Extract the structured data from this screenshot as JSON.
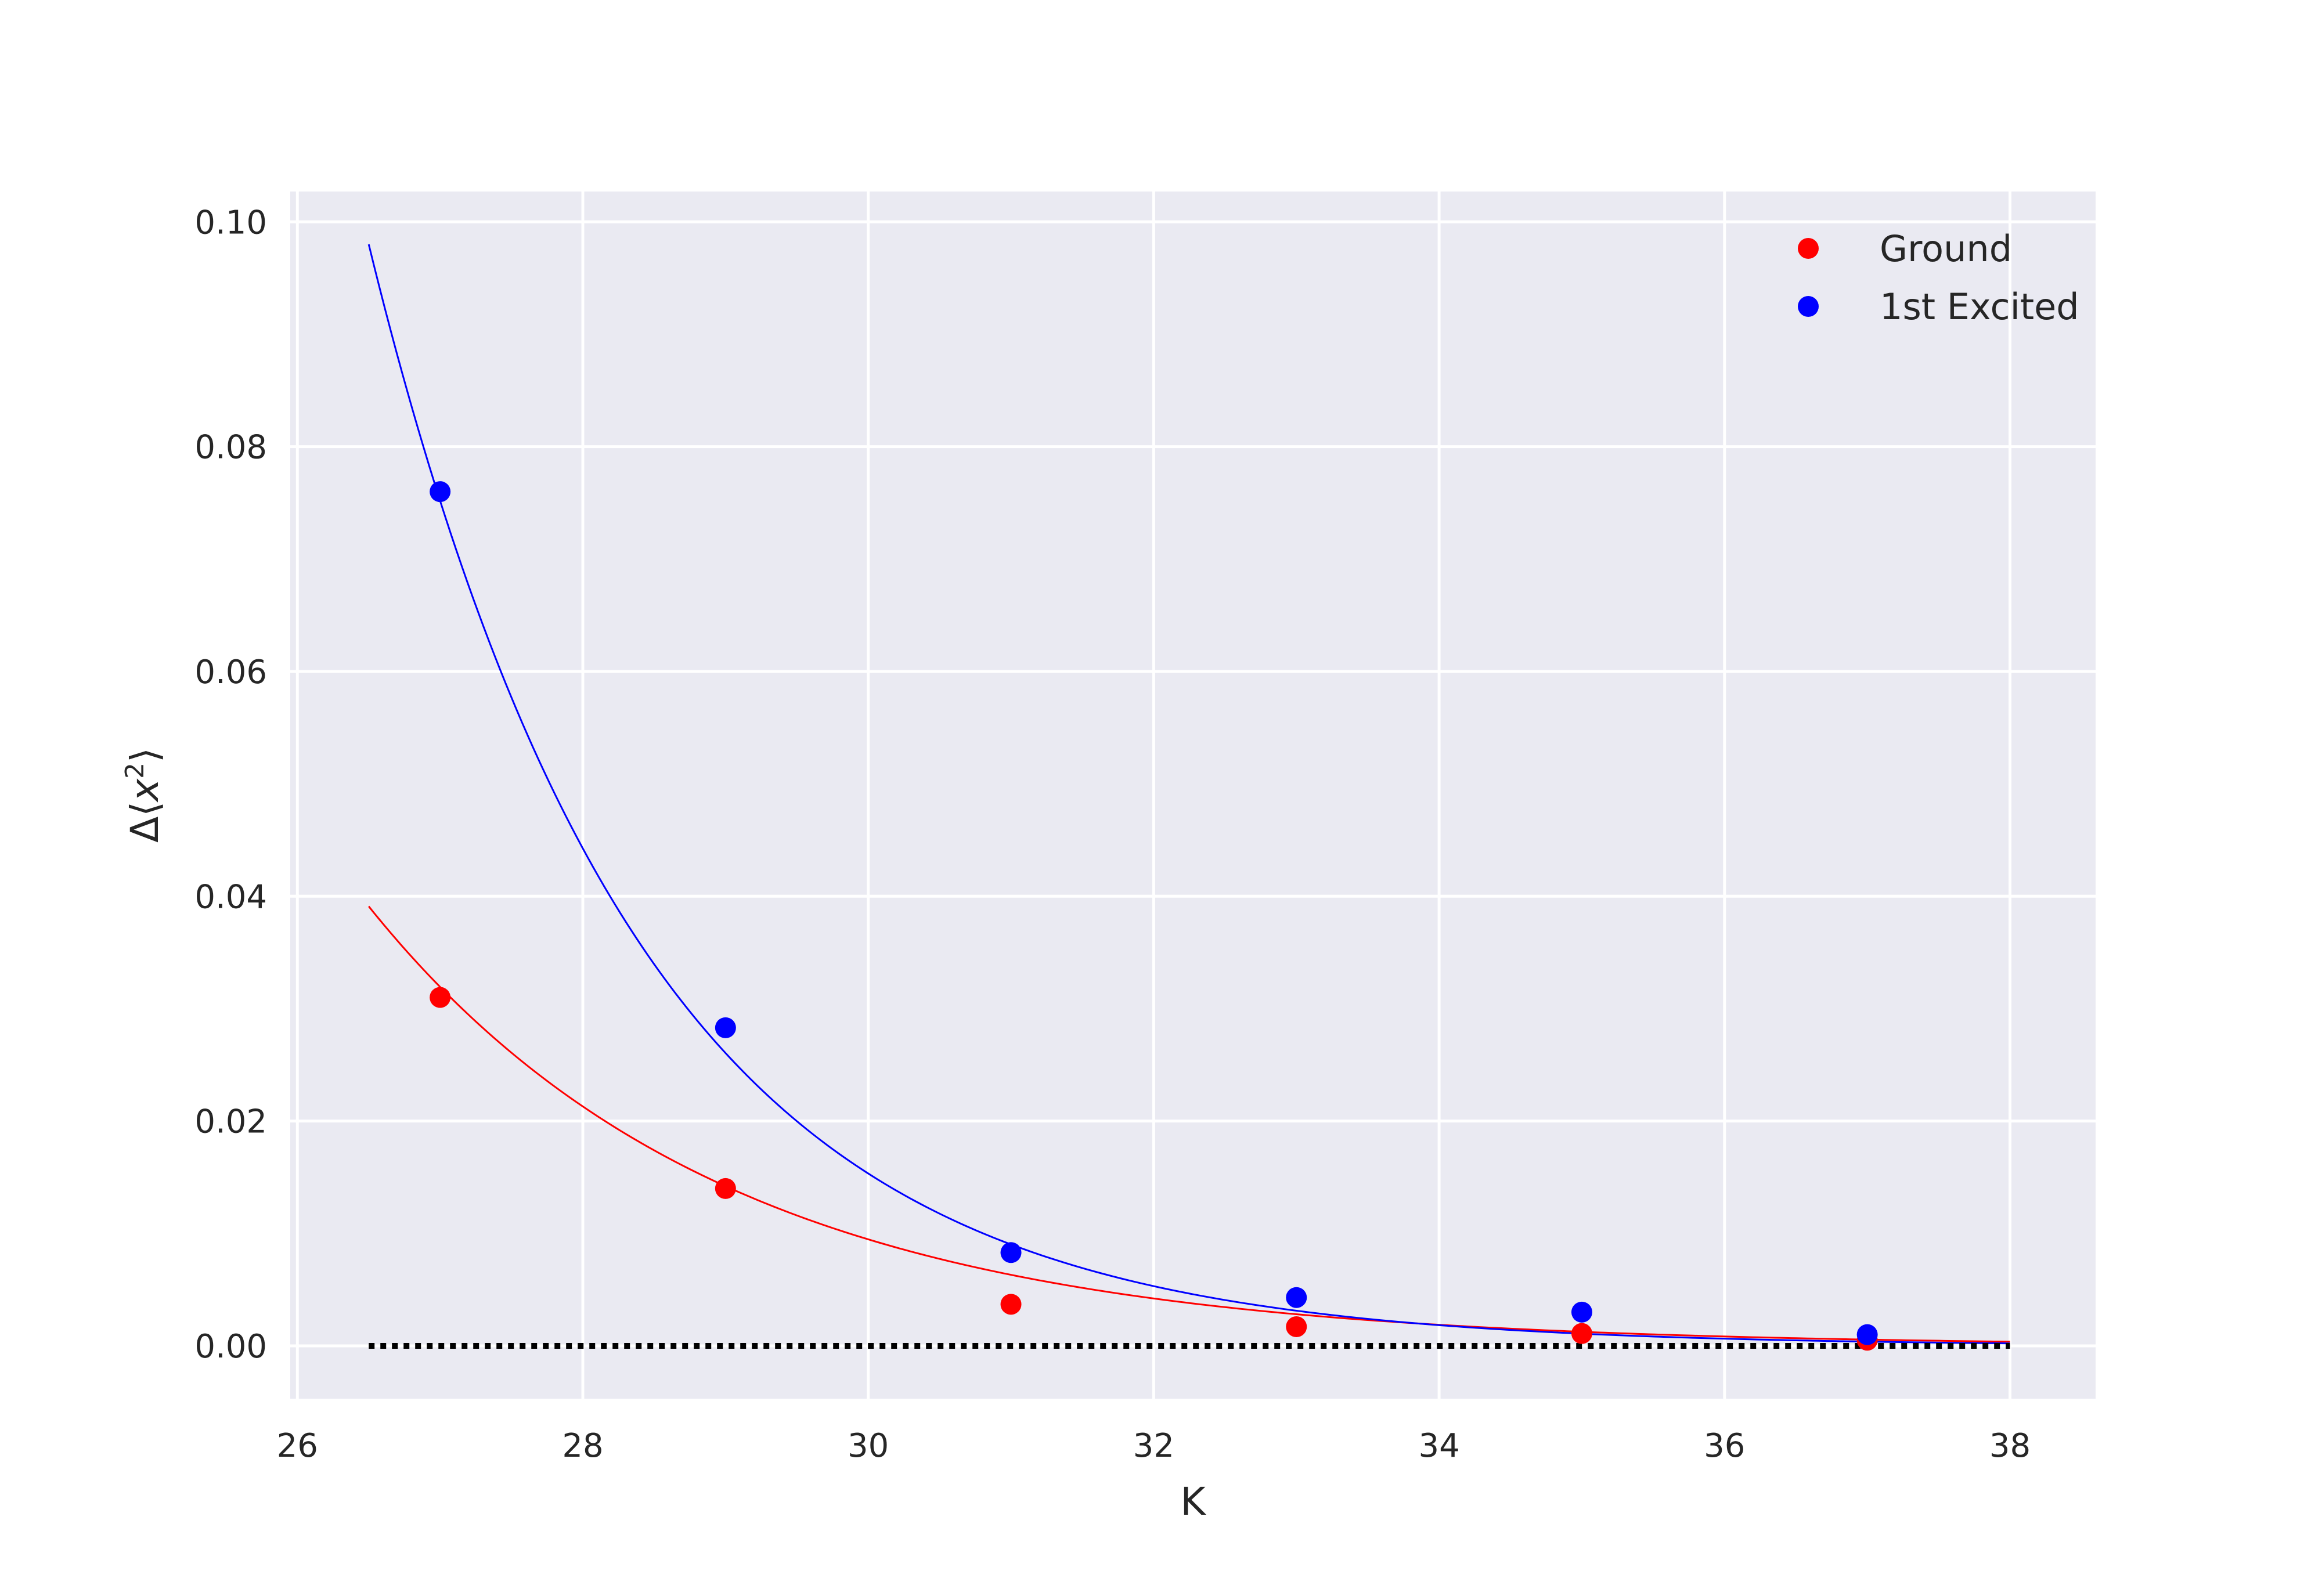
{
  "chart_data": {
    "type": "scatter",
    "title": "",
    "xlabel": "K",
    "ylabel_parts": {
      "prefix": "Δ⟨",
      "var": "x",
      "sup": "2",
      "suffix": "⟩"
    },
    "xlim": [
      25.95,
      38.6
    ],
    "ylim": [
      -0.0047,
      0.1027
    ],
    "xticks": [
      26,
      28,
      30,
      32,
      34,
      36,
      38
    ],
    "yticks": [
      0.0,
      0.02,
      0.04,
      0.06,
      0.08,
      0.1
    ],
    "xtick_labels": [
      "26",
      "28",
      "30",
      "32",
      "34",
      "36",
      "38"
    ],
    "ytick_labels": [
      "0.00",
      "0.02",
      "0.04",
      "0.06",
      "0.08",
      "0.10"
    ],
    "grid": true,
    "legend_position": "top-right",
    "series": [
      {
        "name": "Ground",
        "color": "#ff0000",
        "x": [
          27,
          29,
          31,
          33,
          35,
          37
        ],
        "y": [
          0.031,
          0.014,
          0.0037,
          0.0017,
          0.0011,
          0.0005
        ]
      },
      {
        "name": "1st Excited",
        "color": "#0000ff",
        "x": [
          27,
          29,
          31,
          33,
          35,
          37
        ],
        "y": [
          0.076,
          0.0283,
          0.0083,
          0.0043,
          0.003,
          0.001
        ]
      }
    ],
    "fits": [
      {
        "color": "#ff0000",
        "x_range": [
          26.5,
          38
        ],
        "amplitude": 0.0391,
        "rate": 0.405,
        "x0": 26.5
      },
      {
        "color": "#0000ff",
        "x_range": [
          26.5,
          38
        ],
        "amplitude": 0.098,
        "rate": 0.53,
        "x0": 26.5
      }
    ],
    "reference_line": {
      "y": 0,
      "x_range": [
        26.5,
        38
      ],
      "style": "dotted",
      "color": "#000000"
    },
    "style": {
      "background": "#eaeaf2",
      "grid_color": "#ffffff"
    }
  }
}
